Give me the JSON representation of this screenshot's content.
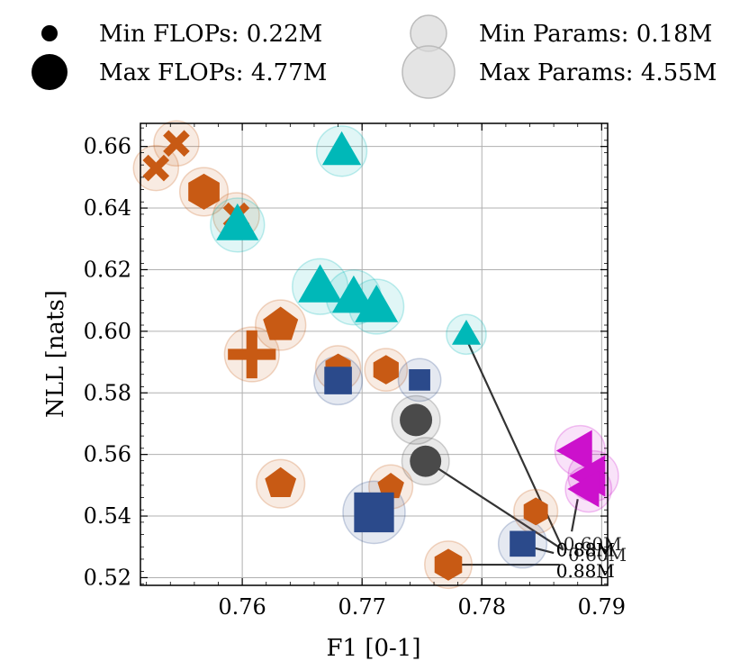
{
  "legend": {
    "min_flops": "Min FLOPs: 0.22M",
    "max_flops": "Max FLOPs: 4.77M",
    "min_params": "Min Params: 0.18M",
    "max_params": "Max Params: 4.55M"
  },
  "chart_data": {
    "type": "scatter",
    "title": "",
    "xlabel": "F1 [0-1]",
    "ylabel": "NLL [nats]",
    "xlim": [
      0.7515,
      0.7905
    ],
    "ylim": [
      0.5175,
      0.6675
    ],
    "xticks": [
      0.76,
      0.77,
      0.78,
      0.79
    ],
    "xtick_labels": [
      "0.76",
      "0.77",
      "0.78",
      "0.79"
    ],
    "yticks": [
      0.52,
      0.54,
      0.56,
      0.58,
      0.6,
      0.62,
      0.64,
      0.66
    ],
    "ytick_labels": [
      "0.52",
      "0.54",
      "0.56",
      "0.58",
      "0.60",
      "0.62",
      "0.64",
      "0.66"
    ],
    "grid": true,
    "colors": {
      "orange": "#c85a14",
      "cyan": "#00b8b8",
      "navy": "#2b4a8b",
      "gray": "#4a4a4a",
      "magenta": "#cc11cc",
      "line": "#333333"
    },
    "points": [
      {
        "x": 0.7545,
        "y": 0.661,
        "marker": "x",
        "color": "orange",
        "flops": 0.9,
        "params": 1.0
      },
      {
        "x": 0.7528,
        "y": 0.653,
        "marker": "x",
        "color": "orange",
        "flops": 0.9,
        "params": 1.0
      },
      {
        "x": 0.7568,
        "y": 0.6453,
        "marker": "hexagon",
        "color": "orange",
        "flops": 1.2,
        "params": 1.3
      },
      {
        "x": 0.7595,
        "y": 0.6375,
        "marker": "x",
        "color": "orange",
        "flops": 0.9,
        "params": 1.1
      },
      {
        "x": 0.7683,
        "y": 0.6585,
        "marker": "triangle",
        "color": "cyan",
        "flops": 1.4,
        "params": 1.5
      },
      {
        "x": 0.7596,
        "y": 0.6345,
        "marker": "triangle",
        "color": "cyan",
        "flops": 1.8,
        "params": 1.9
      },
      {
        "x": 0.7665,
        "y": 0.6145,
        "marker": "triangle",
        "color": "cyan",
        "flops": 2.0,
        "params": 2.1
      },
      {
        "x": 0.7693,
        "y": 0.611,
        "marker": "triangle",
        "color": "cyan",
        "flops": 1.9,
        "params": 2.0
      },
      {
        "x": 0.7712,
        "y": 0.608,
        "marker": "triangle",
        "color": "cyan",
        "flops": 1.9,
        "params": 2.0
      },
      {
        "x": 0.7632,
        "y": 0.602,
        "marker": "pentagon",
        "color": "orange",
        "flops": 1.3,
        "params": 1.5
      },
      {
        "x": 0.7608,
        "y": 0.5925,
        "marker": "plus",
        "color": "orange",
        "flops": 1.9,
        "params": 2.0
      },
      {
        "x": 0.7787,
        "y": 0.599,
        "marker": "triangle",
        "color": "cyan",
        "flops": 0.5,
        "params": 0.6
      },
      {
        "x": 0.768,
        "y": 0.588,
        "marker": "hexagon",
        "color": "orange",
        "flops": 0.6,
        "params": 1.0
      },
      {
        "x": 0.772,
        "y": 0.5875,
        "marker": "hexagon",
        "color": "orange",
        "flops": 0.6,
        "params": 0.8
      },
      {
        "x": 0.768,
        "y": 0.584,
        "marker": "square",
        "color": "navy",
        "flops": 1.0,
        "params": 1.3
      },
      {
        "x": 0.7748,
        "y": 0.5842,
        "marker": "square",
        "color": "navy",
        "flops": 0.4,
        "params": 0.8
      },
      {
        "x": 0.7745,
        "y": 0.5712,
        "marker": "circle",
        "color": "gray",
        "flops": 1.0,
        "params": 1.3
      },
      {
        "x": 0.7753,
        "y": 0.5578,
        "marker": "circle",
        "color": "gray",
        "flops": 0.9,
        "params": 1.2
      },
      {
        "x": 0.7632,
        "y": 0.5505,
        "marker": "pentagon",
        "color": "orange",
        "flops": 0.9,
        "params": 1.3
      },
      {
        "x": 0.7724,
        "y": 0.5495,
        "marker": "pentagon",
        "color": "orange",
        "flops": 0.5,
        "params": 0.9
      },
      {
        "x": 0.771,
        "y": 0.5412,
        "marker": "square",
        "color": "navy",
        "flops": 3.0,
        "params": 3.0
      },
      {
        "x": 0.7845,
        "y": 0.5415,
        "marker": "hexagon",
        "color": "orange",
        "flops": 0.5,
        "params": 0.9
      },
      {
        "x": 0.7834,
        "y": 0.531,
        "marker": "square",
        "color": "navy",
        "flops": 0.8,
        "params": 1.3
      },
      {
        "x": 0.7772,
        "y": 0.5242,
        "marker": "hexagon",
        "color": "orange",
        "flops": 0.8,
        "params": 1.2
      },
      {
        "x": 0.7882,
        "y": 0.5612,
        "marker": "triangle-left",
        "color": "magenta",
        "flops": 1.5,
        "params": 1.5
      },
      {
        "x": 0.7893,
        "y": 0.553,
        "marker": "triangle-left",
        "color": "magenta",
        "flops": 1.5,
        "params": 1.5
      },
      {
        "x": 0.7889,
        "y": 0.5488,
        "marker": "triangle-left",
        "color": "magenta",
        "flops": 1.0,
        "params": 1.1
      }
    ],
    "connectors": [
      {
        "from": [
          0.7787,
          0.5975
        ],
        "to": [
          0.7868,
          0.529
        ]
      },
      {
        "from": [
          0.7758,
          0.5568
        ],
        "to": [
          0.7868,
          0.529
        ]
      },
      {
        "from": [
          0.7842,
          0.5298
        ],
        "to": [
          0.786,
          0.528
        ]
      },
      {
        "from": [
          0.7775,
          0.5242
        ],
        "to": [
          0.7865,
          0.5242
        ]
      },
      {
        "from": [
          0.788,
          0.5455
        ],
        "to": [
          0.7875,
          0.535
        ]
      }
    ],
    "annotations": [
      {
        "text": "0.60M",
        "x": 0.7868,
        "y": 0.531,
        "color": "magenta"
      },
      {
        "text": "0.60M",
        "x": 0.7872,
        "y": 0.5275,
        "color": "magenta"
      },
      {
        "text": "0.88M",
        "x": 0.7862,
        "y": 0.529,
        "color": "cyan"
      },
      {
        "text": "0.88M",
        "x": 0.7862,
        "y": 0.529,
        "color": "orange"
      },
      {
        "text": "0.88M",
        "x": 0.7862,
        "y": 0.529,
        "color": "navy"
      },
      {
        "text": "0.88M",
        "x": 0.7862,
        "y": 0.5222,
        "color": "cyan"
      },
      {
        "text": "0.88M",
        "x": 0.7862,
        "y": 0.5222,
        "color": "orange"
      }
    ]
  }
}
